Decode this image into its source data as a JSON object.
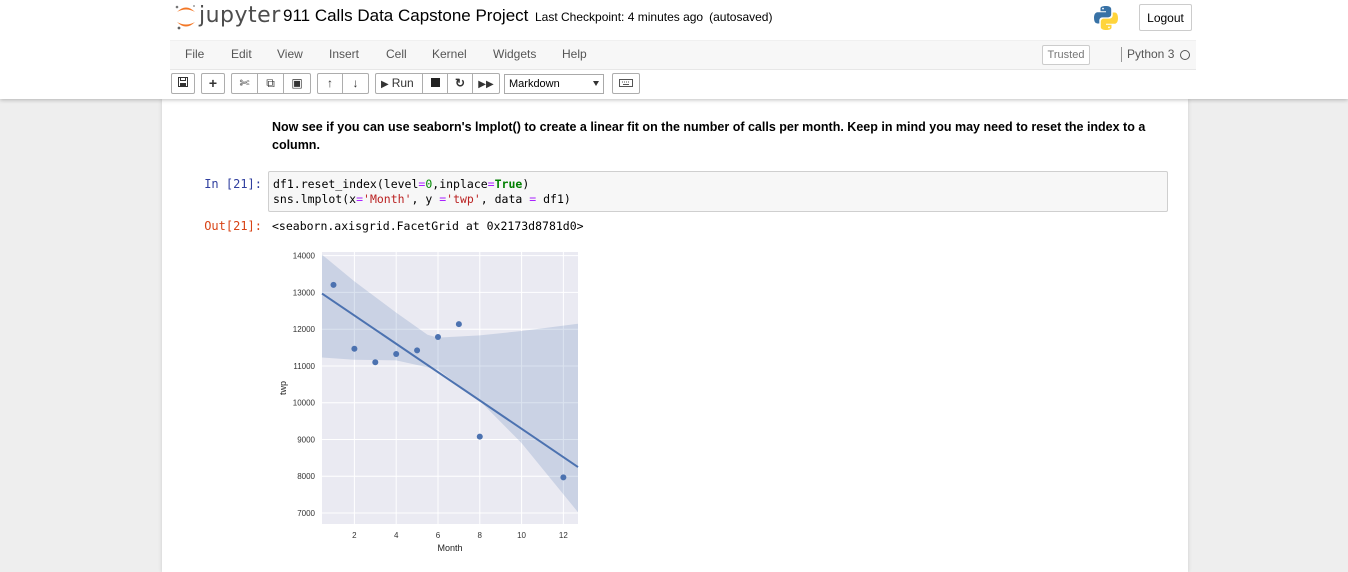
{
  "header": {
    "logo_text": "jupyter",
    "notebook_title": "911 Calls Data Capstone Project",
    "checkpoint": "Last Checkpoint: 4 minutes ago",
    "autosave": "(autosaved)",
    "logout_label": "Logout"
  },
  "menubar": {
    "items": [
      "File",
      "Edit",
      "View",
      "Insert",
      "Cell",
      "Kernel",
      "Widgets",
      "Help"
    ],
    "trusted_label": "Trusted",
    "kernel_name": "Python 3"
  },
  "toolbar": {
    "run_label": "Run",
    "cell_type": "Markdown"
  },
  "cells": {
    "markdown_text": "Now see if you can use seaborn's lmplot() to create a linear fit on the number of calls per month. Keep in mind you may need to reset the index to a column.",
    "in_prompt": "In [21]:",
    "code_lines": [
      "df1.reset_index(level=0,inplace=True)",
      "sns.lmplot(x='Month', y ='twp', data = df1)"
    ],
    "out_prompt": "Out[21]:",
    "output_text": "<seaborn.axisgrid.FacetGrid at 0x2173d8781d0>"
  },
  "colors": {
    "accent": "#4c72b0",
    "plot_bg": "#eaeaf2",
    "in_prompt": "#303f9f",
    "out_prompt": "#d84315"
  },
  "chart_data": {
    "type": "scatter",
    "xlabel": "Month",
    "ylabel": "twp",
    "x_ticks": [
      2,
      4,
      6,
      8,
      10,
      12
    ],
    "y_ticks": [
      7000,
      8000,
      9000,
      10000,
      11000,
      12000,
      13000,
      14000
    ],
    "xlim": [
      0.45,
      12.7
    ],
    "ylim": [
      6700,
      14100
    ],
    "points": [
      {
        "x": 1,
        "y": 13205
      },
      {
        "x": 2,
        "y": 11467
      },
      {
        "x": 3,
        "y": 11101
      },
      {
        "x": 4,
        "y": 11326
      },
      {
        "x": 5,
        "y": 11423
      },
      {
        "x": 6,
        "y": 11786
      },
      {
        "x": 7,
        "y": 12137
      },
      {
        "x": 8,
        "y": 9078
      },
      {
        "x": 12,
        "y": 7969
      }
    ],
    "regression": {
      "x_start": 0.45,
      "y_start": 12970,
      "x_end": 12.7,
      "y_end": 8250
    },
    "ci_upper": [
      {
        "x": 0.45,
        "y": 14030
      },
      {
        "x": 2,
        "y": 13300
      },
      {
        "x": 4,
        "y": 12450
      },
      {
        "x": 5.5,
        "y": 11850
      },
      {
        "x": 6,
        "y": 11770
      },
      {
        "x": 8,
        "y": 11830
      },
      {
        "x": 10,
        "y": 11950
      },
      {
        "x": 12.7,
        "y": 12150
      }
    ],
    "ci_lower": [
      {
        "x": 12.7,
        "y": 7020
      },
      {
        "x": 10,
        "y": 8900
      },
      {
        "x": 8,
        "y": 10050
      },
      {
        "x": 6,
        "y": 10900
      },
      {
        "x": 4,
        "y": 11150
      },
      {
        "x": 2,
        "y": 11170
      },
      {
        "x": 0.45,
        "y": 11230
      }
    ]
  }
}
